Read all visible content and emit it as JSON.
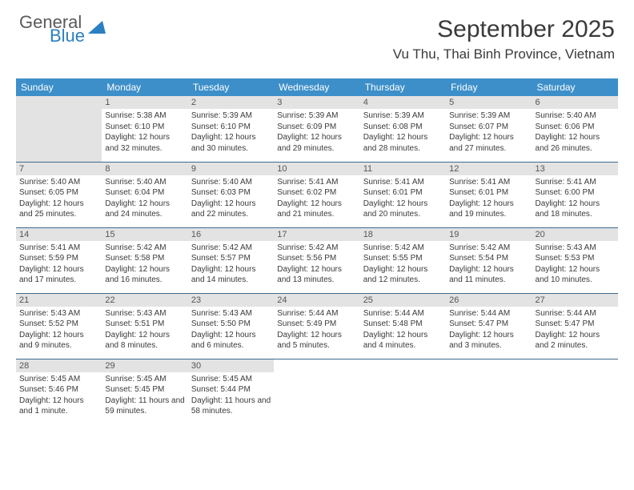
{
  "logo": {
    "part1": "General",
    "part2": "Blue"
  },
  "header": {
    "month_title": "September 2025",
    "location": "Vu Thu, Thai Binh Province, Vietnam"
  },
  "colors": {
    "header_bg": "#3d8fc9",
    "header_text": "#ffffff",
    "daynum_bg": "#e3e3e3",
    "row_border": "#3d6a8f",
    "text": "#3a3a3a",
    "logo_gray": "#5a5a5a",
    "logo_blue": "#2b7fc3"
  },
  "day_headers": [
    "Sunday",
    "Monday",
    "Tuesday",
    "Wednesday",
    "Thursday",
    "Friday",
    "Saturday"
  ],
  "weeks": [
    [
      {
        "num": "",
        "empty": true
      },
      {
        "num": "1",
        "sunrise": "Sunrise: 5:38 AM",
        "sunset": "Sunset: 6:10 PM",
        "daylight": "Daylight: 12 hours and 32 minutes."
      },
      {
        "num": "2",
        "sunrise": "Sunrise: 5:39 AM",
        "sunset": "Sunset: 6:10 PM",
        "daylight": "Daylight: 12 hours and 30 minutes."
      },
      {
        "num": "3",
        "sunrise": "Sunrise: 5:39 AM",
        "sunset": "Sunset: 6:09 PM",
        "daylight": "Daylight: 12 hours and 29 minutes."
      },
      {
        "num": "4",
        "sunrise": "Sunrise: 5:39 AM",
        "sunset": "Sunset: 6:08 PM",
        "daylight": "Daylight: 12 hours and 28 minutes."
      },
      {
        "num": "5",
        "sunrise": "Sunrise: 5:39 AM",
        "sunset": "Sunset: 6:07 PM",
        "daylight": "Daylight: 12 hours and 27 minutes."
      },
      {
        "num": "6",
        "sunrise": "Sunrise: 5:40 AM",
        "sunset": "Sunset: 6:06 PM",
        "daylight": "Daylight: 12 hours and 26 minutes."
      }
    ],
    [
      {
        "num": "7",
        "sunrise": "Sunrise: 5:40 AM",
        "sunset": "Sunset: 6:05 PM",
        "daylight": "Daylight: 12 hours and 25 minutes."
      },
      {
        "num": "8",
        "sunrise": "Sunrise: 5:40 AM",
        "sunset": "Sunset: 6:04 PM",
        "daylight": "Daylight: 12 hours and 24 minutes."
      },
      {
        "num": "9",
        "sunrise": "Sunrise: 5:40 AM",
        "sunset": "Sunset: 6:03 PM",
        "daylight": "Daylight: 12 hours and 22 minutes."
      },
      {
        "num": "10",
        "sunrise": "Sunrise: 5:41 AM",
        "sunset": "Sunset: 6:02 PM",
        "daylight": "Daylight: 12 hours and 21 minutes."
      },
      {
        "num": "11",
        "sunrise": "Sunrise: 5:41 AM",
        "sunset": "Sunset: 6:01 PM",
        "daylight": "Daylight: 12 hours and 20 minutes."
      },
      {
        "num": "12",
        "sunrise": "Sunrise: 5:41 AM",
        "sunset": "Sunset: 6:01 PM",
        "daylight": "Daylight: 12 hours and 19 minutes."
      },
      {
        "num": "13",
        "sunrise": "Sunrise: 5:41 AM",
        "sunset": "Sunset: 6:00 PM",
        "daylight": "Daylight: 12 hours and 18 minutes."
      }
    ],
    [
      {
        "num": "14",
        "sunrise": "Sunrise: 5:41 AM",
        "sunset": "Sunset: 5:59 PM",
        "daylight": "Daylight: 12 hours and 17 minutes."
      },
      {
        "num": "15",
        "sunrise": "Sunrise: 5:42 AM",
        "sunset": "Sunset: 5:58 PM",
        "daylight": "Daylight: 12 hours and 16 minutes."
      },
      {
        "num": "16",
        "sunrise": "Sunrise: 5:42 AM",
        "sunset": "Sunset: 5:57 PM",
        "daylight": "Daylight: 12 hours and 14 minutes."
      },
      {
        "num": "17",
        "sunrise": "Sunrise: 5:42 AM",
        "sunset": "Sunset: 5:56 PM",
        "daylight": "Daylight: 12 hours and 13 minutes."
      },
      {
        "num": "18",
        "sunrise": "Sunrise: 5:42 AM",
        "sunset": "Sunset: 5:55 PM",
        "daylight": "Daylight: 12 hours and 12 minutes."
      },
      {
        "num": "19",
        "sunrise": "Sunrise: 5:42 AM",
        "sunset": "Sunset: 5:54 PM",
        "daylight": "Daylight: 12 hours and 11 minutes."
      },
      {
        "num": "20",
        "sunrise": "Sunrise: 5:43 AM",
        "sunset": "Sunset: 5:53 PM",
        "daylight": "Daylight: 12 hours and 10 minutes."
      }
    ],
    [
      {
        "num": "21",
        "sunrise": "Sunrise: 5:43 AM",
        "sunset": "Sunset: 5:52 PM",
        "daylight": "Daylight: 12 hours and 9 minutes."
      },
      {
        "num": "22",
        "sunrise": "Sunrise: 5:43 AM",
        "sunset": "Sunset: 5:51 PM",
        "daylight": "Daylight: 12 hours and 8 minutes."
      },
      {
        "num": "23",
        "sunrise": "Sunrise: 5:43 AM",
        "sunset": "Sunset: 5:50 PM",
        "daylight": "Daylight: 12 hours and 6 minutes."
      },
      {
        "num": "24",
        "sunrise": "Sunrise: 5:44 AM",
        "sunset": "Sunset: 5:49 PM",
        "daylight": "Daylight: 12 hours and 5 minutes."
      },
      {
        "num": "25",
        "sunrise": "Sunrise: 5:44 AM",
        "sunset": "Sunset: 5:48 PM",
        "daylight": "Daylight: 12 hours and 4 minutes."
      },
      {
        "num": "26",
        "sunrise": "Sunrise: 5:44 AM",
        "sunset": "Sunset: 5:47 PM",
        "daylight": "Daylight: 12 hours and 3 minutes."
      },
      {
        "num": "27",
        "sunrise": "Sunrise: 5:44 AM",
        "sunset": "Sunset: 5:47 PM",
        "daylight": "Daylight: 12 hours and 2 minutes."
      }
    ],
    [
      {
        "num": "28",
        "sunrise": "Sunrise: 5:45 AM",
        "sunset": "Sunset: 5:46 PM",
        "daylight": "Daylight: 12 hours and 1 minute."
      },
      {
        "num": "29",
        "sunrise": "Sunrise: 5:45 AM",
        "sunset": "Sunset: 5:45 PM",
        "daylight": "Daylight: 11 hours and 59 minutes."
      },
      {
        "num": "30",
        "sunrise": "Sunrise: 5:45 AM",
        "sunset": "Sunset: 5:44 PM",
        "daylight": "Daylight: 11 hours and 58 minutes."
      },
      {
        "num": "",
        "empty": true
      },
      {
        "num": "",
        "empty": true
      },
      {
        "num": "",
        "empty": true
      },
      {
        "num": "",
        "empty": true
      }
    ]
  ]
}
